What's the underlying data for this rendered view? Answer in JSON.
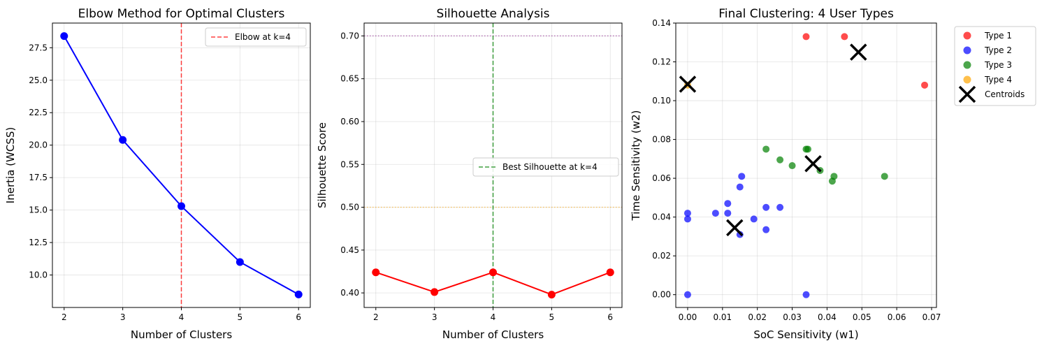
{
  "chart_data": [
    {
      "type": "line",
      "title": "Elbow Method for Optimal Clusters",
      "xlabel": "Number of Clusters",
      "ylabel": "Inertia (WCSS)",
      "x": [
        2,
        3,
        4,
        5,
        6
      ],
      "y": [
        28.4,
        20.4,
        15.3,
        11.0,
        8.5
      ],
      "xlim": [
        1.8,
        6.2
      ],
      "ylim": [
        7.5,
        29.4
      ],
      "xticks": [
        2,
        3,
        4,
        5,
        6
      ],
      "yticks": [
        10.0,
        12.5,
        15.0,
        17.5,
        20.0,
        22.5,
        25.0,
        27.5
      ],
      "ytick_labels": [
        "10.0",
        "12.5",
        "15.0",
        "17.5",
        "20.0",
        "22.5",
        "25.0",
        "27.5"
      ],
      "line_color": "#0000ff",
      "vline": {
        "x": 4,
        "color": "#ff0000",
        "label": "Elbow at k=4"
      },
      "legend_position": "upper right",
      "grid": true
    },
    {
      "type": "line",
      "title": "Silhouette Analysis",
      "xlabel": "Number of Clusters",
      "ylabel": "Silhouette Score",
      "x": [
        2,
        3,
        4,
        5,
        6
      ],
      "y": [
        0.424,
        0.401,
        0.424,
        0.398,
        0.424
      ],
      "xlim": [
        1.8,
        6.2
      ],
      "ylim": [
        0.383,
        0.715
      ],
      "xticks": [
        2,
        3,
        4,
        5,
        6
      ],
      "yticks": [
        0.4,
        0.45,
        0.5,
        0.55,
        0.6,
        0.65,
        0.7
      ],
      "ytick_labels": [
        "0.40",
        "0.45",
        "0.50",
        "0.55",
        "0.60",
        "0.65",
        "0.70"
      ],
      "line_color": "#ff0000",
      "vline": {
        "x": 4,
        "color": "#008000",
        "label": "Best Silhouette at k=4"
      },
      "hlines": [
        {
          "y": 0.7,
          "color": "#800080"
        },
        {
          "y": 0.5,
          "color": "#ffa500"
        }
      ],
      "legend_position": "center right",
      "grid": true
    },
    {
      "type": "scatter",
      "title": "Final Clustering: 4 User Types",
      "xlabel": "SoC Sensitivity (w1)",
      "ylabel": "Time Sensitivity (w2)",
      "xlim": [
        -0.0034,
        0.0714
      ],
      "ylim": [
        -0.0066,
        0.14
      ],
      "xticks": [
        0.0,
        0.01,
        0.02,
        0.03,
        0.04,
        0.05,
        0.06,
        0.07
      ],
      "xtick_labels": [
        "0.00",
        "0.01",
        "0.02",
        "0.03",
        "0.04",
        "0.05",
        "0.06",
        "0.07"
      ],
      "yticks": [
        0.0,
        0.02,
        0.04,
        0.06,
        0.08,
        0.1,
        0.12,
        0.14
      ],
      "ytick_labels": [
        "0.00",
        "0.02",
        "0.04",
        "0.06",
        "0.08",
        "0.10",
        "0.12",
        "0.14"
      ],
      "series": [
        {
          "name": "Type 1",
          "color": "#ff0000",
          "points": [
            [
              0.034,
              0.133
            ],
            [
              0.045,
              0.133
            ],
            [
              0.068,
              0.108
            ]
          ]
        },
        {
          "name": "Type 2",
          "color": "#0000ff",
          "points": [
            [
              0.0,
              0.042
            ],
            [
              0.0,
              0.039
            ],
            [
              0.0,
              0.0
            ],
            [
              0.008,
              0.042
            ],
            [
              0.0115,
              0.047
            ],
            [
              0.0115,
              0.042
            ],
            [
              0.015,
              0.0555
            ],
            [
              0.0155,
              0.061
            ],
            [
              0.015,
              0.031
            ],
            [
              0.019,
              0.039
            ],
            [
              0.0225,
              0.045
            ],
            [
              0.0225,
              0.0335
            ],
            [
              0.0265,
              0.045
            ],
            [
              0.034,
              0.0
            ]
          ]
        },
        {
          "name": "Type 3",
          "color": "#008000",
          "points": [
            [
              0.0225,
              0.075
            ],
            [
              0.0265,
              0.0695
            ],
            [
              0.03,
              0.0665
            ],
            [
              0.034,
              0.075
            ],
            [
              0.0345,
              0.075
            ],
            [
              0.038,
              0.064
            ],
            [
              0.0415,
              0.0585
            ],
            [
              0.042,
              0.061
            ],
            [
              0.0565,
              0.061
            ]
          ]
        },
        {
          "name": "Type 4",
          "color": "#ffa500",
          "points": [
            [
              0.0,
              0.108
            ]
          ]
        }
      ],
      "centroids": {
        "name": "Centroids",
        "color": "#000000",
        "points": [
          [
            0.0,
            0.1085
          ],
          [
            0.049,
            0.125
          ],
          [
            0.036,
            0.0675
          ],
          [
            0.0135,
            0.0345
          ]
        ]
      },
      "legend_position": "outside upper right",
      "grid": true
    }
  ]
}
